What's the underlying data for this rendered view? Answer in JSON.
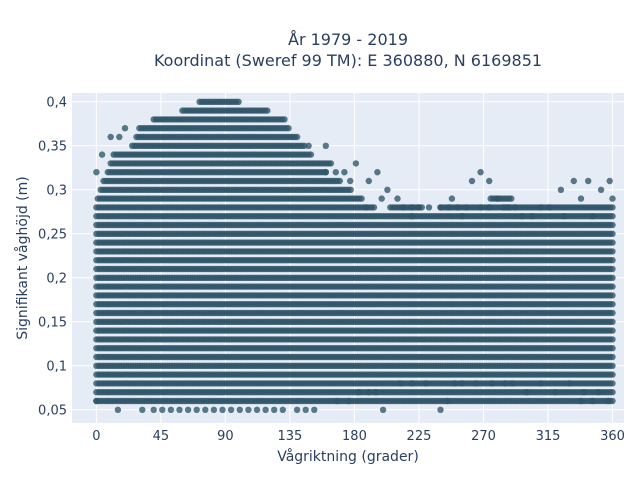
{
  "chart_data": {
    "type": "scatter",
    "title_line1": "År 1979 - 2019",
    "title_line2": "Koordinat (Sweref 99 TM): E 360880, N 6169851",
    "xlabel": "Vågriktning (grader)",
    "ylabel": "Signifikant våghöjd (m)",
    "xlim": [
      -17,
      368
    ],
    "ylim": [
      0.035,
      0.41
    ],
    "x_ticks": [
      0,
      45,
      90,
      135,
      180,
      225,
      270,
      315,
      360
    ],
    "x_tick_labels": [
      "0",
      "45",
      "90",
      "135",
      "180",
      "225",
      "270",
      "315",
      "360"
    ],
    "y_ticks": [
      0.05,
      0.1,
      0.15,
      0.2,
      0.25,
      0.3,
      0.35,
      0.4
    ],
    "y_tick_labels": [
      "0,05",
      "0,1",
      "0,15",
      "0,2",
      "0,25",
      "0,3",
      "0,35",
      "0,4"
    ],
    "grid": true,
    "marker_color": "#2f5568",
    "plot_bg": "#e5ecf6",
    "series": [
      {
        "bands": [
          {
            "y": 0.06,
            "x": [
              [
                0,
                360
              ]
            ]
          },
          {
            "y": 0.07,
            "x": [
              [
                0,
                360
              ]
            ]
          },
          {
            "y": 0.08,
            "x": [
              [
                0,
                360
              ]
            ]
          },
          {
            "y": 0.09,
            "x": [
              [
                0,
                360
              ]
            ]
          },
          {
            "y": 0.1,
            "x": [
              [
                0,
                360
              ]
            ]
          },
          {
            "y": 0.11,
            "x": [
              [
                0,
                360
              ]
            ]
          },
          {
            "y": 0.12,
            "x": [
              [
                0,
                360
              ]
            ]
          },
          {
            "y": 0.13,
            "x": [
              [
                0,
                360
              ]
            ]
          },
          {
            "y": 0.14,
            "x": [
              [
                0,
                360
              ]
            ]
          },
          {
            "y": 0.15,
            "x": [
              [
                0,
                360
              ]
            ]
          },
          {
            "y": 0.16,
            "x": [
              [
                0,
                360
              ]
            ]
          },
          {
            "y": 0.17,
            "x": [
              [
                0,
                360
              ]
            ]
          },
          {
            "y": 0.18,
            "x": [
              [
                0,
                360
              ]
            ]
          },
          {
            "y": 0.19,
            "x": [
              [
                0,
                360
              ]
            ]
          },
          {
            "y": 0.2,
            "x": [
              [
                0,
                360
              ]
            ]
          },
          {
            "y": 0.21,
            "x": [
              [
                0,
                360
              ]
            ]
          },
          {
            "y": 0.22,
            "x": [
              [
                0,
                360
              ]
            ]
          },
          {
            "y": 0.23,
            "x": [
              [
                0,
                360
              ]
            ]
          },
          {
            "y": 0.24,
            "x": [
              [
                0,
                360
              ]
            ]
          },
          {
            "y": 0.25,
            "x": [
              [
                0,
                360
              ]
            ]
          },
          {
            "y": 0.26,
            "x": [
              [
                0,
                360
              ]
            ]
          },
          {
            "y": 0.27,
            "x": [
              [
                0,
                360
              ]
            ]
          },
          {
            "y": 0.28,
            "x": [
              [
                0,
                195
              ],
              [
                205,
                225
              ],
              [
                240,
                360
              ]
            ]
          },
          {
            "y": 0.29,
            "x": [
              [
                1,
                185
              ],
              [
                275,
                290
              ]
            ]
          },
          {
            "y": 0.3,
            "x": [
              [
                3,
                178
              ]
            ]
          },
          {
            "y": 0.31,
            "x": [
              [
                5,
                170
              ]
            ]
          },
          {
            "y": 0.32,
            "x": [
              [
                8,
                160
              ]
            ]
          },
          {
            "y": 0.33,
            "x": [
              [
                10,
                165
              ]
            ]
          },
          {
            "y": 0.34,
            "x": [
              [
                12,
                150
              ]
            ]
          },
          {
            "y": 0.35,
            "x": [
              [
                25,
                145
              ]
            ]
          },
          {
            "y": 0.36,
            "x": [
              [
                28,
                140
              ]
            ]
          },
          {
            "y": 0.37,
            "x": [
              [
                30,
                135
              ]
            ]
          },
          {
            "y": 0.38,
            "x": [
              [
                40,
                132
              ]
            ]
          },
          {
            "y": 0.39,
            "x": [
              [
                60,
                120
              ]
            ]
          },
          {
            "y": 0.4,
            "x": [
              [
                72,
                100
              ]
            ]
          }
        ],
        "points": [
          [
            0,
            0.32
          ],
          [
            4,
            0.34
          ],
          [
            10,
            0.36
          ],
          [
            16,
            0.36
          ],
          [
            20,
            0.37
          ],
          [
            15,
            0.05
          ],
          [
            32,
            0.05
          ],
          [
            40,
            0.05
          ],
          [
            46,
            0.05
          ],
          [
            52,
            0.05
          ],
          [
            58,
            0.05
          ],
          [
            64,
            0.05
          ],
          [
            70,
            0.05
          ],
          [
            76,
            0.05
          ],
          [
            82,
            0.05
          ],
          [
            88,
            0.05
          ],
          [
            94,
            0.05
          ],
          [
            100,
            0.05
          ],
          [
            106,
            0.05
          ],
          [
            112,
            0.05
          ],
          [
            118,
            0.05
          ],
          [
            124,
            0.05
          ],
          [
            130,
            0.05
          ],
          [
            140,
            0.05
          ],
          [
            146,
            0.05
          ],
          [
            152,
            0.05
          ],
          [
            200,
            0.05
          ],
          [
            240,
            0.05
          ],
          [
            245,
            0.06
          ],
          [
            338,
            0.06
          ],
          [
            346,
            0.06
          ],
          [
            357,
            0.06
          ],
          [
            0,
            0.06
          ],
          [
            148,
            0.35
          ],
          [
            160,
            0.35
          ],
          [
            160,
            0.32
          ],
          [
            167,
            0.32
          ],
          [
            173,
            0.32
          ],
          [
            177,
            0.31
          ],
          [
            181,
            0.33
          ],
          [
            190,
            0.31
          ],
          [
            196,
            0.32
          ],
          [
            203,
            0.3
          ],
          [
            199,
            0.29
          ],
          [
            188,
            0.28
          ],
          [
            210,
            0.29
          ],
          [
            214,
            0.28
          ],
          [
            220,
            0.27
          ],
          [
            225,
            0.28
          ],
          [
            232,
            0.28
          ],
          [
            248,
            0.29
          ],
          [
            255,
            0.27
          ],
          [
            262,
            0.31
          ],
          [
            268,
            0.32
          ],
          [
            274,
            0.31
          ],
          [
            280,
            0.29
          ],
          [
            286,
            0.28
          ],
          [
            292,
            0.28
          ],
          [
            297,
            0.27
          ],
          [
            304,
            0.27
          ],
          [
            310,
            0.28
          ],
          [
            316,
            0.28
          ],
          [
            324,
            0.3
          ],
          [
            326,
            0.27
          ],
          [
            333,
            0.31
          ],
          [
            338,
            0.29
          ],
          [
            343,
            0.31
          ],
          [
            346,
            0.27
          ],
          [
            352,
            0.3
          ],
          [
            358,
            0.31
          ],
          [
            360,
            0.29
          ],
          [
            300,
            0.07
          ],
          [
            310,
            0.08
          ],
          [
            320,
            0.07
          ],
          [
            330,
            0.08
          ],
          [
            340,
            0.07
          ],
          [
            350,
            0.07
          ],
          [
            290,
            0.08
          ],
          [
            285,
            0.08
          ],
          [
            276,
            0.08
          ],
          [
            265,
            0.08
          ],
          [
            255,
            0.08
          ],
          [
            250,
            0.08
          ],
          [
            230,
            0.08
          ],
          [
            220,
            0.08
          ],
          [
            212,
            0.08
          ],
          [
            195,
            0.07
          ],
          [
            190,
            0.07
          ],
          [
            183,
            0.07
          ],
          [
            176,
            0.06
          ],
          [
            168,
            0.06
          ],
          [
            225,
            0.28
          ],
          [
            220,
            0.28
          ],
          [
            227,
            0.28
          ],
          [
            240,
            0.28
          ],
          [
            246,
            0.28
          ],
          [
            252,
            0.28
          ],
          [
            258,
            0.28
          ],
          [
            268,
            0.28
          ],
          [
            274,
            0.28
          ],
          [
            284,
            0.28
          ],
          [
            288,
            0.28
          ]
        ]
      }
    ]
  }
}
